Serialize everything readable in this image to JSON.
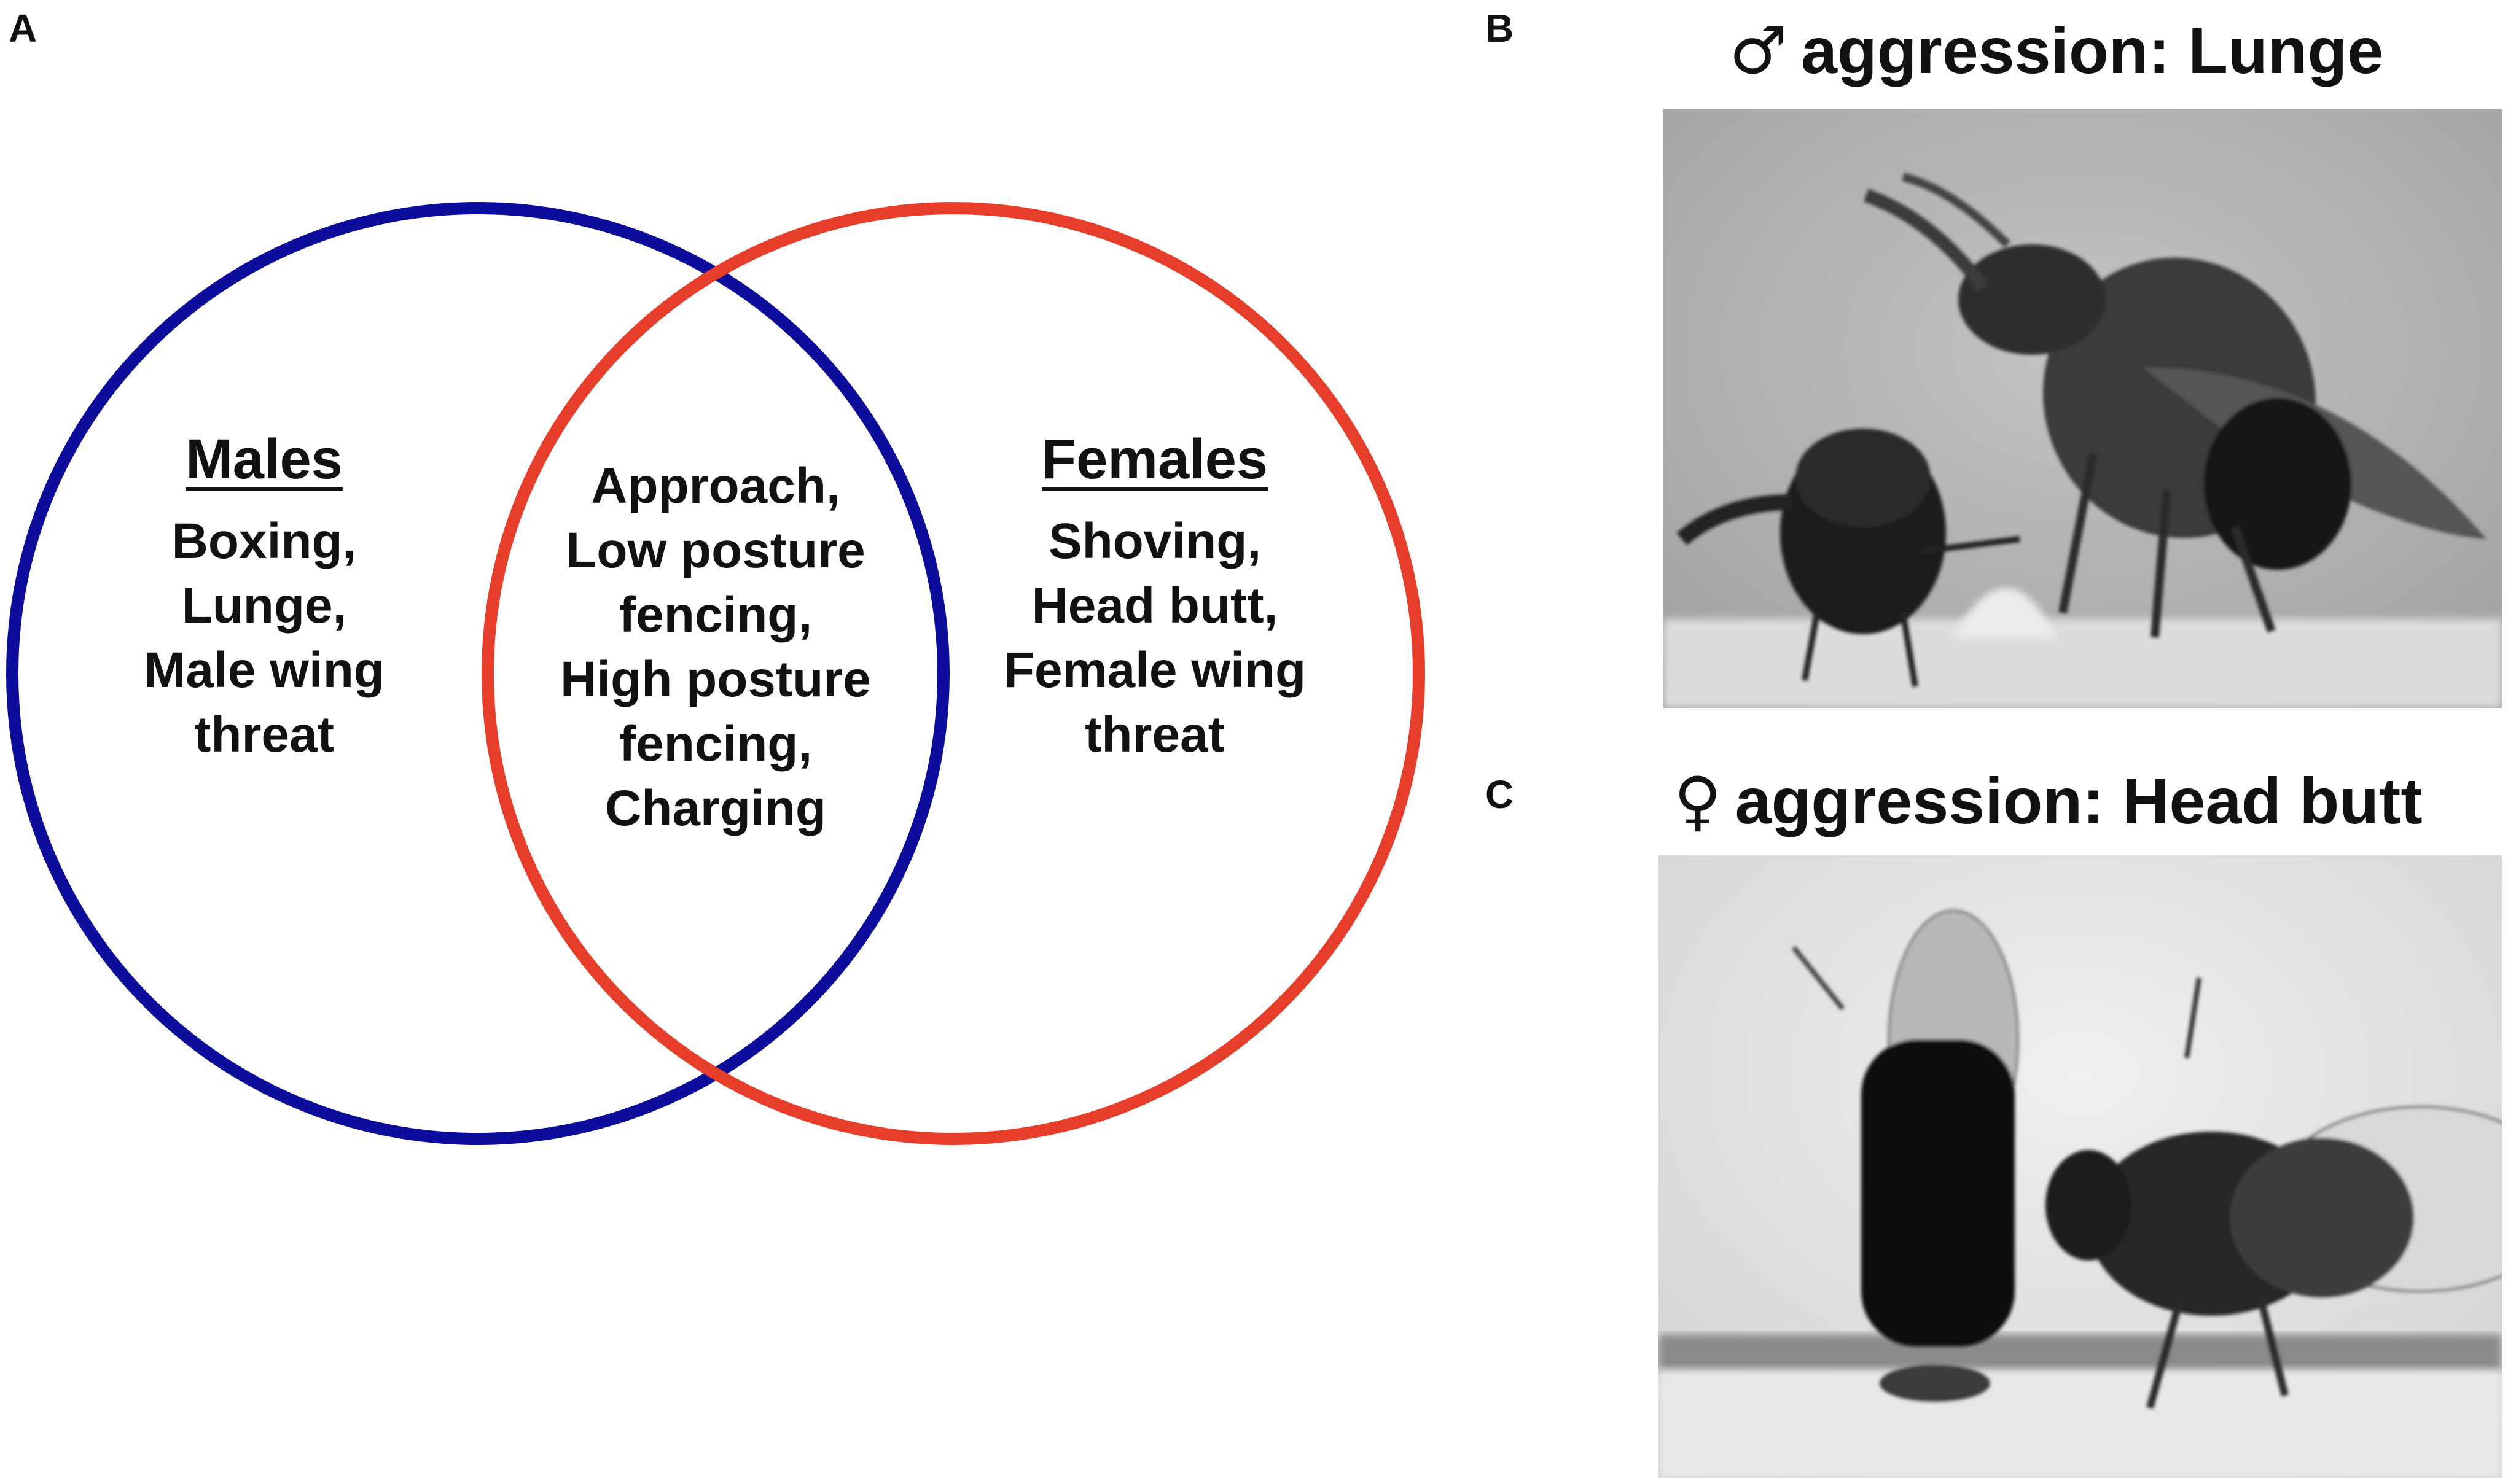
{
  "panels": {
    "a": {
      "label": "A"
    },
    "b": {
      "label": "B",
      "symbol": "♂",
      "title": "aggression: Lunge"
    },
    "c": {
      "label": "C",
      "symbol": "♀",
      "title": "aggression: Head butt"
    }
  },
  "venn": {
    "males": {
      "title": "Males",
      "items": [
        "Boxing,",
        "Lunge,",
        "Male wing",
        "threat"
      ],
      "color": "#0d0d9c"
    },
    "shared": {
      "items": [
        "Approach,",
        "Low posture",
        "fencing,",
        "High posture",
        "fencing,",
        "Charging"
      ]
    },
    "females": {
      "title": "Females",
      "items": [
        "Shoving,",
        "Head butt,",
        "Female wing",
        "threat"
      ],
      "color": "#e63e2a"
    }
  }
}
